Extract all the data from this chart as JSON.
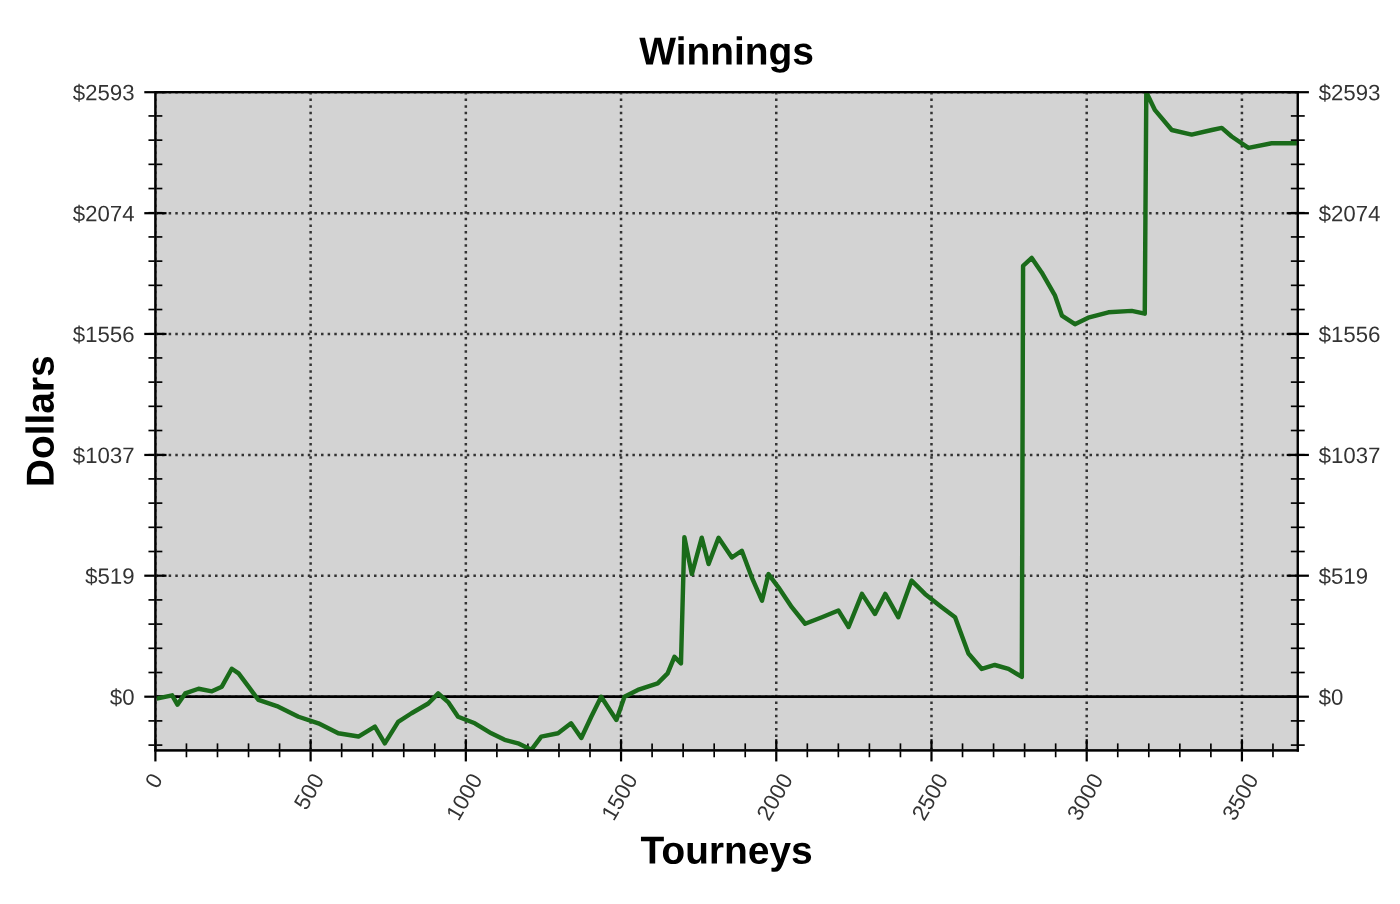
{
  "chart_data": {
    "type": "line",
    "title": "Winnings",
    "xlabel": "Tourneys",
    "ylabel": "Dollars",
    "x": [
      11,
      54,
      71,
      96,
      139,
      182,
      214,
      246,
      268,
      300,
      332,
      396,
      461,
      525,
      589,
      654,
      707,
      739,
      782,
      825,
      879,
      911,
      943,
      975,
      1029,
      1082,
      1125,
      1168,
      1211,
      1243,
      1297,
      1339,
      1372,
      1404,
      1436,
      1457,
      1485,
      1511,
      1554,
      1586,
      1618,
      1650,
      1672,
      1693,
      1704,
      1728,
      1760,
      1782,
      1814,
      1857,
      1889,
      1921,
      1954,
      1975,
      2007,
      2050,
      2093,
      2147,
      2200,
      2233,
      2276,
      2318,
      2351,
      2393,
      2436,
      2479,
      2533,
      2576,
      2619,
      2662,
      2704,
      2748,
      2791,
      2795,
      2823,
      2855,
      2898,
      2920,
      2962,
      3005,
      3070,
      3145,
      3187,
      3192,
      3220,
      3274,
      3338,
      3403,
      3435,
      3467,
      3521,
      3596,
      3670
    ],
    "series": [
      {
        "color": "#1a6b1a",
        "values": [
          -6,
          6,
          -34,
          14,
          34,
          23,
          43,
          120,
          100,
          43,
          -14,
          -43,
          -86,
          -114,
          -157,
          -171,
          -128,
          -200,
          -108,
          -71,
          -29,
          14,
          -23,
          -86,
          -114,
          -157,
          -185,
          -200,
          -228,
          -171,
          -157,
          -114,
          -177,
          -86,
          0,
          -43,
          -100,
          0,
          29,
          43,
          57,
          100,
          171,
          143,
          684,
          526,
          682,
          569,
          682,
          597,
          626,
          512,
          412,
          526,
          469,
          384,
          313,
          341,
          370,
          299,
          441,
          355,
          441,
          341,
          498,
          441,
          384,
          341,
          185,
          119,
          136,
          119,
          85,
          1848,
          1882,
          1820,
          1720,
          1635,
          1598,
          1626,
          1649,
          1655,
          1643,
          2593,
          2516,
          2431,
          2411,
          2431,
          2440,
          2403,
          2354,
          2374,
          2374
        ]
      }
    ],
    "xlim": [
      0,
      3680
    ],
    "xticks": [
      0,
      500,
      1000,
      1500,
      2000,
      2500,
      3000,
      3500
    ],
    "ylim": [
      -230,
      2593
    ],
    "yticks": [
      {
        "value": 0,
        "label": "$0"
      },
      {
        "value": 519,
        "label": "$519"
      },
      {
        "value": 1037,
        "label": "$1037"
      },
      {
        "value": 1556,
        "label": "$1556"
      },
      {
        "value": 2074,
        "label": "$2074"
      },
      {
        "value": 2593,
        "label": "$2593"
      }
    ],
    "y2lim": [
      -230,
      2593
    ],
    "y2ticks": [
      {
        "value": 0,
        "label": "$0"
      },
      {
        "value": 519,
        "label": "$519"
      },
      {
        "value": 1037,
        "label": "$1037"
      },
      {
        "value": 1556,
        "label": "$1556"
      },
      {
        "value": 2074,
        "label": "$2074"
      },
      {
        "value": 2593,
        "label": "$2593"
      }
    ],
    "ref_lines": [
      {
        "axis": "y",
        "value": 0,
        "color": "#000000",
        "line_style": "solid"
      }
    ],
    "grid": true,
    "line_style": "solid",
    "marker": "none"
  }
}
